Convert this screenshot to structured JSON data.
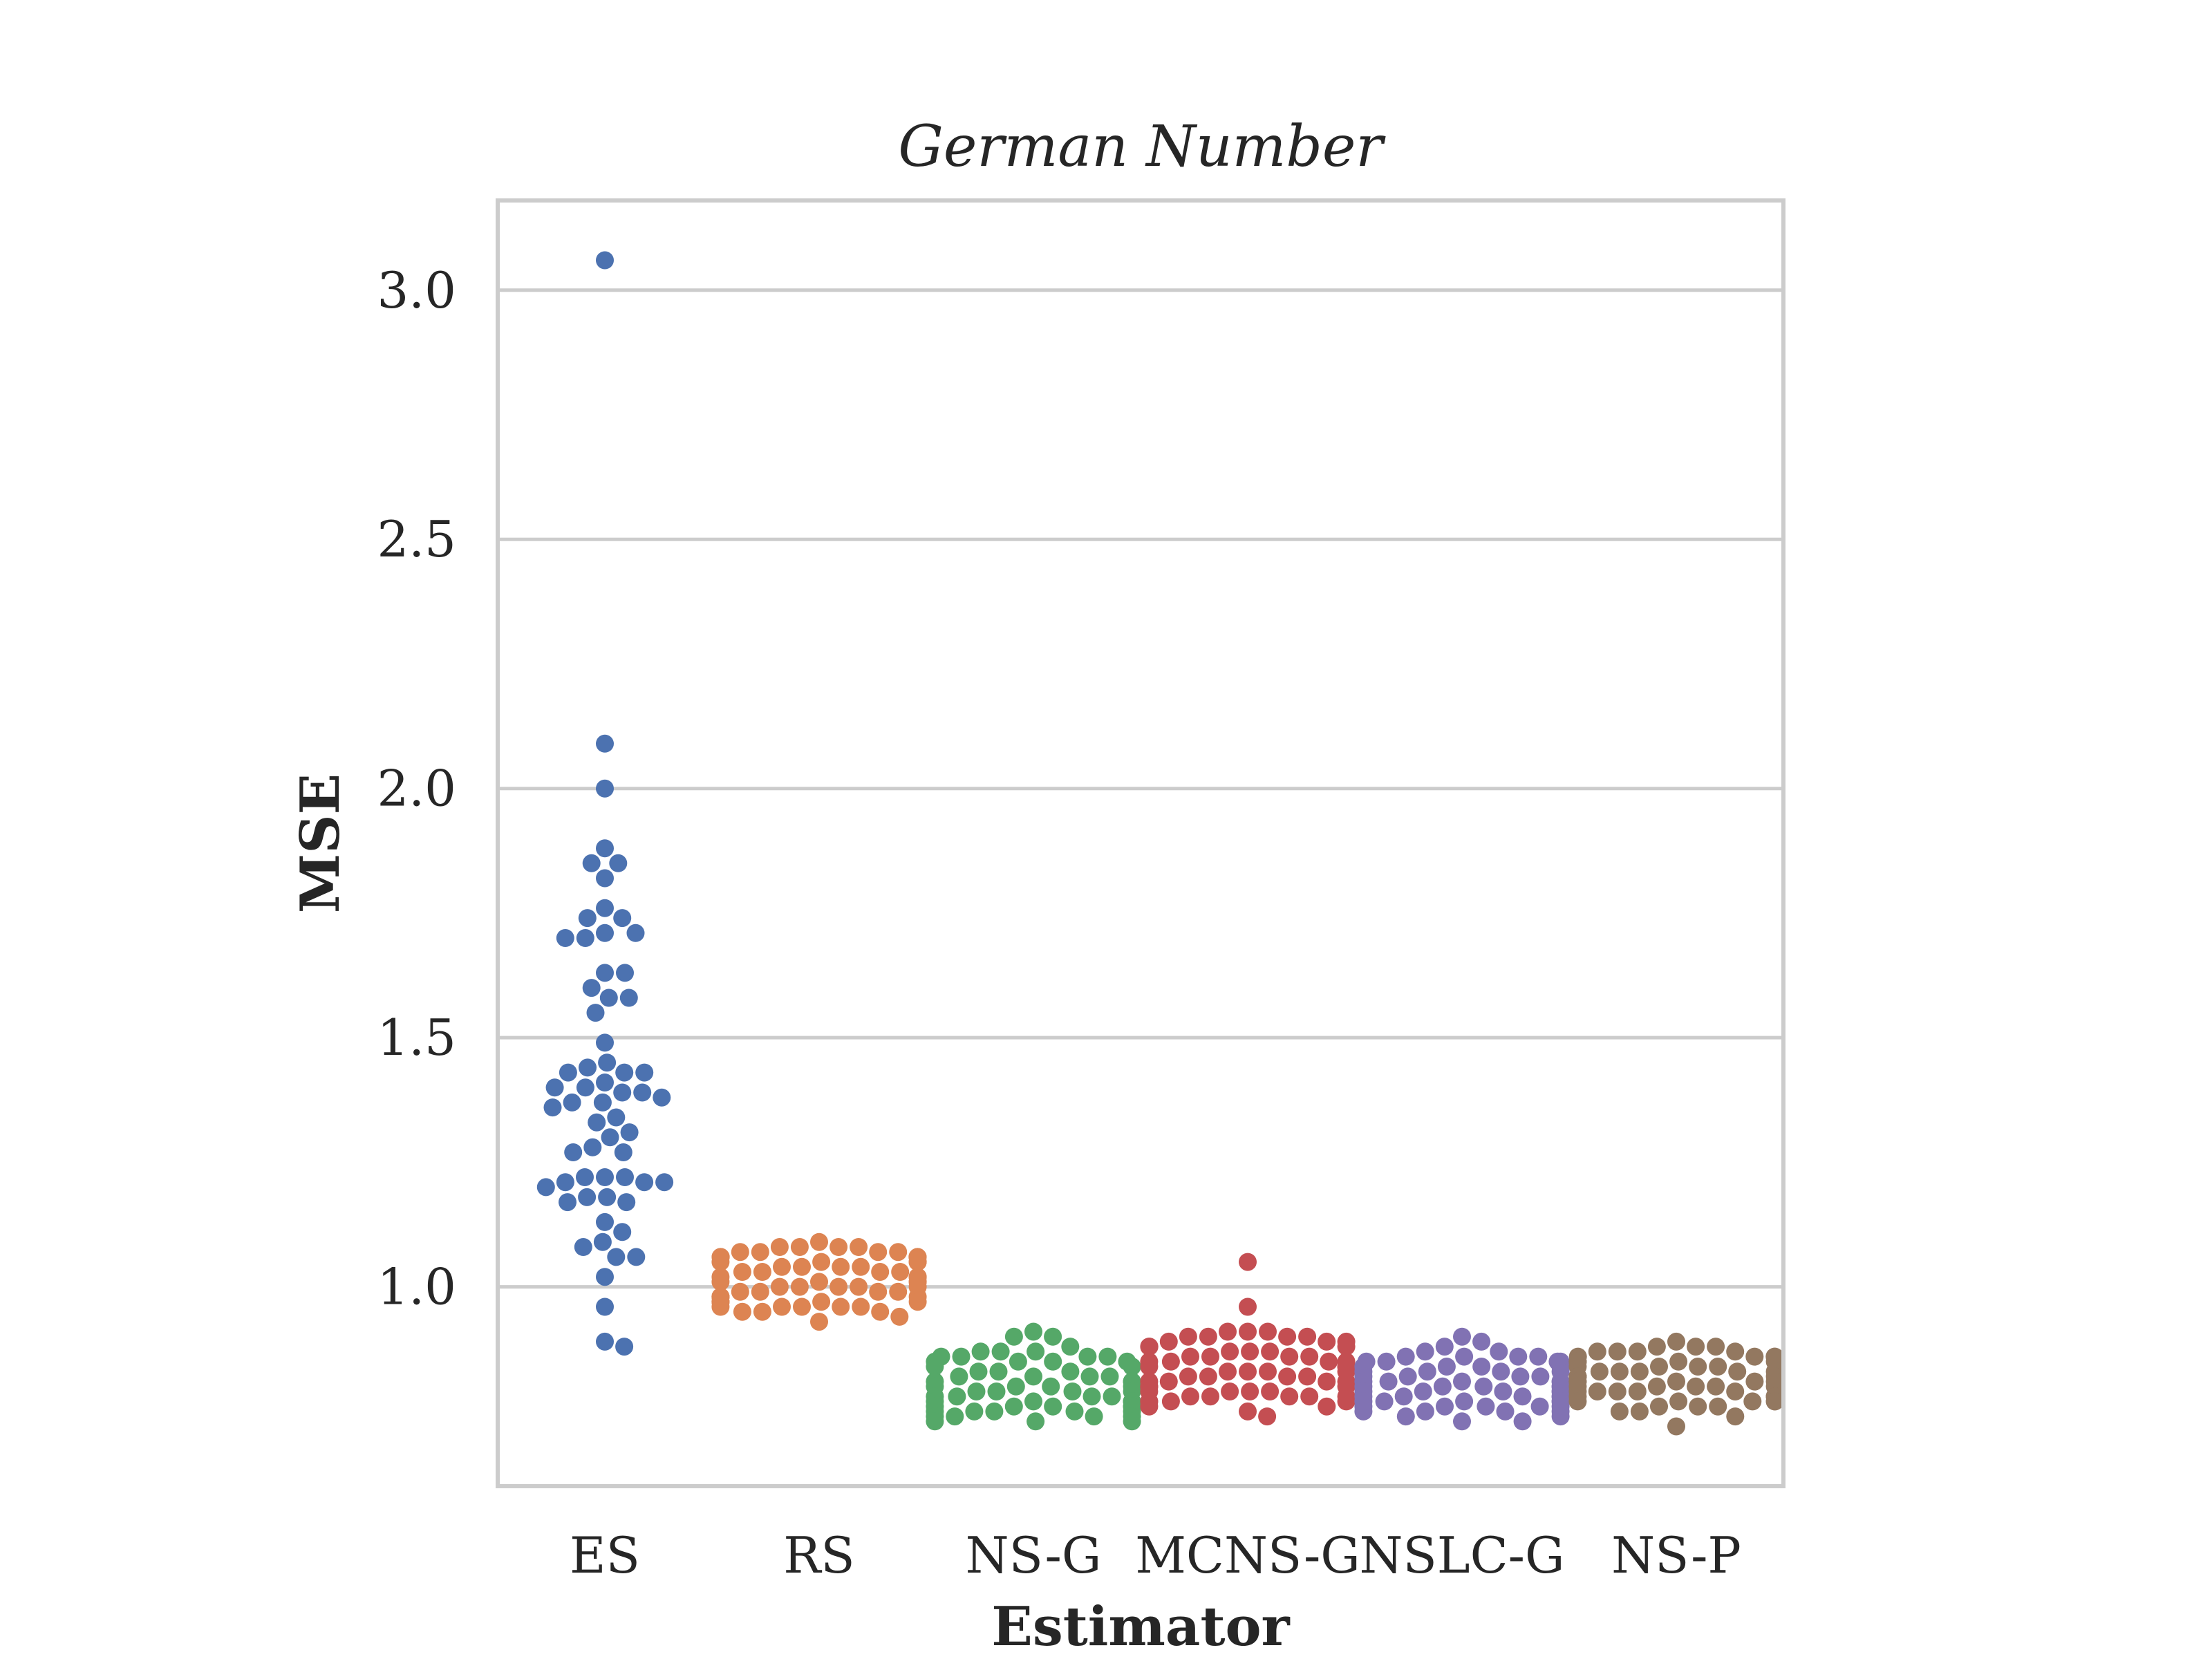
{
  "chart_data": {
    "type": "scatter",
    "subtype": "swarm",
    "title": "German Number",
    "xlabel": "Estimator",
    "ylabel": "MSE",
    "ylim": [
      0.6,
      3.18
    ],
    "yticks": [
      "1.0",
      "1.5",
      "2.0",
      "2.5",
      "3.0"
    ],
    "grid": "horizontal",
    "legend": "none",
    "categories": [
      "ES",
      "RS",
      "NS-G",
      "MCNS-G",
      "NSLC-G",
      "NS-P"
    ],
    "series": [
      {
        "color": "#4c72b0",
        "values": [
          3.06,
          2.09,
          2.0,
          1.88,
          1.85,
          1.85,
          1.82,
          1.76,
          1.74,
          1.74,
          1.71,
          1.71,
          1.7,
          1.7,
          1.63,
          1.63,
          1.6,
          1.58,
          1.58,
          1.55,
          1.49,
          1.45,
          1.44,
          1.43,
          1.43,
          1.43,
          1.41,
          1.4,
          1.4,
          1.39,
          1.39,
          1.38,
          1.37,
          1.37,
          1.36,
          1.34,
          1.33,
          1.31,
          1.3,
          1.28,
          1.27,
          1.27,
          1.22,
          1.22,
          1.22,
          1.21,
          1.21,
          1.21,
          1.2,
          1.18,
          1.18,
          1.17,
          1.17,
          1.13,
          1.11,
          1.09,
          1.08,
          1.06,
          1.06,
          1.02,
          0.96,
          0.89,
          0.88
        ]
      },
      {
        "color": "#dd8452",
        "values": [
          1.09,
          1.08,
          1.08,
          1.08,
          1.08,
          1.07,
          1.07,
          1.07,
          1.07,
          1.06,
          1.06,
          1.06,
          1.06,
          1.05,
          1.05,
          1.05,
          1.05,
          1.05,
          1.04,
          1.04,
          1.04,
          1.04,
          1.03,
          1.03,
          1.03,
          1.03,
          1.02,
          1.02,
          1.02,
          1.02,
          1.01,
          1.01,
          1.01,
          1.01,
          1.0,
          1.0,
          1.0,
          1.0,
          1.0,
          0.99,
          0.99,
          0.99,
          0.99,
          0.98,
          0.98,
          0.98,
          0.98,
          0.98,
          0.97,
          0.97,
          0.97,
          0.97,
          0.97,
          0.96,
          0.96,
          0.96,
          0.96,
          0.96,
          0.95,
          0.95,
          0.95,
          0.94,
          0.93
        ]
      },
      {
        "color": "#55a868",
        "values": [
          0.91,
          0.9,
          0.9,
          0.88,
          0.87,
          0.87,
          0.87,
          0.86,
          0.86,
          0.86,
          0.86,
          0.85,
          0.85,
          0.85,
          0.85,
          0.84,
          0.84,
          0.84,
          0.83,
          0.83,
          0.83,
          0.82,
          0.82,
          0.82,
          0.82,
          0.81,
          0.81,
          0.81,
          0.81,
          0.8,
          0.8,
          0.8,
          0.8,
          0.79,
          0.79,
          0.79,
          0.79,
          0.78,
          0.78,
          0.78,
          0.78,
          0.77,
          0.77,
          0.77,
          0.77,
          0.77,
          0.76,
          0.76,
          0.76,
          0.76,
          0.76,
          0.75,
          0.75,
          0.75,
          0.75,
          0.75,
          0.74,
          0.74,
          0.74,
          0.74,
          0.73,
          0.73,
          0.73
        ]
      },
      {
        "color": "#c44e52",
        "values": [
          1.05,
          0.96,
          0.91,
          0.91,
          0.91,
          0.9,
          0.9,
          0.9,
          0.9,
          0.89,
          0.89,
          0.89,
          0.88,
          0.88,
          0.88,
          0.87,
          0.87,
          0.87,
          0.86,
          0.86,
          0.86,
          0.86,
          0.85,
          0.85,
          0.85,
          0.85,
          0.84,
          0.84,
          0.84,
          0.84,
          0.83,
          0.83,
          0.83,
          0.83,
          0.82,
          0.82,
          0.82,
          0.82,
          0.81,
          0.81,
          0.81,
          0.81,
          0.8,
          0.8,
          0.8,
          0.8,
          0.79,
          0.79,
          0.79,
          0.79,
          0.78,
          0.78,
          0.78,
          0.78,
          0.78,
          0.77,
          0.77,
          0.77,
          0.77,
          0.76,
          0.76,
          0.75,
          0.74
        ]
      },
      {
        "color": "#8172b3",
        "values": [
          0.9,
          0.89,
          0.88,
          0.87,
          0.87,
          0.86,
          0.86,
          0.86,
          0.86,
          0.85,
          0.85,
          0.85,
          0.85,
          0.84,
          0.84,
          0.84,
          0.84,
          0.83,
          0.83,
          0.83,
          0.83,
          0.82,
          0.82,
          0.82,
          0.82,
          0.81,
          0.81,
          0.81,
          0.81,
          0.81,
          0.8,
          0.8,
          0.8,
          0.8,
          0.8,
          0.79,
          0.79,
          0.79,
          0.79,
          0.79,
          0.78,
          0.78,
          0.78,
          0.78,
          0.78,
          0.77,
          0.77,
          0.77,
          0.77,
          0.77,
          0.76,
          0.76,
          0.76,
          0.76,
          0.76,
          0.75,
          0.75,
          0.75,
          0.75,
          0.74,
          0.74,
          0.73,
          0.73
        ]
      },
      {
        "color": "#937860",
        "values": [
          0.89,
          0.88,
          0.88,
          0.88,
          0.87,
          0.87,
          0.87,
          0.87,
          0.86,
          0.86,
          0.86,
          0.86,
          0.85,
          0.85,
          0.85,
          0.85,
          0.85,
          0.84,
          0.84,
          0.84,
          0.84,
          0.83,
          0.83,
          0.83,
          0.83,
          0.83,
          0.82,
          0.82,
          0.82,
          0.82,
          0.82,
          0.81,
          0.81,
          0.81,
          0.81,
          0.81,
          0.8,
          0.8,
          0.8,
          0.8,
          0.8,
          0.79,
          0.79,
          0.79,
          0.79,
          0.79,
          0.78,
          0.78,
          0.78,
          0.78,
          0.78,
          0.77,
          0.77,
          0.77,
          0.77,
          0.77,
          0.76,
          0.76,
          0.76,
          0.75,
          0.75,
          0.74,
          0.72
        ]
      }
    ]
  }
}
